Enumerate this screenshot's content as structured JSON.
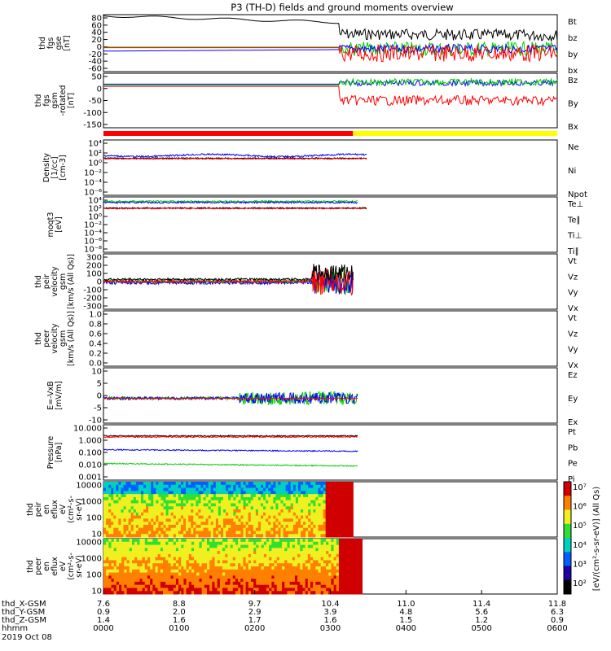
{
  "title": "P3 (TH-D) fields and ground moments overview",
  "colors": {
    "black": "#000000",
    "red": "#ff0000",
    "green": "#00cc00",
    "blue": "#0000ff",
    "yellow": "#ffff00"
  },
  "chart_data": [
    {
      "id": "fgs_gse",
      "type": "line",
      "ylabel": [
        "thd",
        "fgs",
        "gse",
        "[nT]"
      ],
      "yticks": [
        "80",
        "60",
        "40",
        "20",
        "0",
        "-20",
        "-40",
        "-60"
      ],
      "series": [
        {
          "name": "Bt",
          "color": "black"
        },
        {
          "name": "bz",
          "color": "red"
        },
        {
          "name": "by",
          "color": "green"
        },
        {
          "name": "bx",
          "color": "blue"
        }
      ]
    },
    {
      "id": "fgs_gsm",
      "type": "line",
      "ylabel": [
        "thd",
        "fgs",
        "gsm",
        "-rotated",
        "[nT]"
      ],
      "yticks": [
        "50",
        "0",
        "-50",
        "-100",
        "-150"
      ],
      "series": [
        {
          "name": "Bz",
          "color": "red"
        },
        {
          "name": "By",
          "color": "green"
        },
        {
          "name": "Bx",
          "color": "blue"
        }
      ]
    },
    {
      "id": "mode_bar",
      "type": "bar",
      "segments": [
        {
          "from": "0000",
          "to": "0318",
          "color": "red"
        },
        {
          "from": "0318",
          "to": "0600",
          "color": "yellow"
        }
      ]
    },
    {
      "id": "density",
      "type": "line",
      "ylabel": [
        "Density",
        "[1/cc]",
        "[cm-3]"
      ],
      "scale": "log",
      "yticks": [
        "10⁴",
        "10²",
        "10⁰",
        "10⁻²",
        "10⁻⁴",
        "10⁻⁶"
      ],
      "series": [
        {
          "name": "Ne",
          "color": "red"
        },
        {
          "name": "Ni",
          "color": "black"
        },
        {
          "name": "Npot",
          "color": "blue"
        }
      ]
    },
    {
      "id": "temp",
      "type": "line",
      "ylabel": [
        "moqt3",
        "[eV]"
      ],
      "scale": "log",
      "yticks": [
        "10⁴",
        "10²",
        "10⁰",
        "10⁻²",
        "10⁻⁴",
        "10⁻⁶",
        "10⁻⁸"
      ],
      "series": [
        {
          "name": "Te⊥",
          "color": "red"
        },
        {
          "name": "Te∥",
          "color": "black"
        },
        {
          "name": "Ti⊥",
          "color": "blue"
        },
        {
          "name": "Ti∥",
          "color": "green"
        }
      ]
    },
    {
      "id": "peir_vel",
      "type": "line",
      "ylabel": [
        "thd",
        "peir",
        "velocity",
        "gsm",
        "[km/s (All Qs)]"
      ],
      "yticks": [
        "300",
        "200",
        "100",
        "0",
        "-100",
        "-200",
        "-300"
      ],
      "series": [
        {
          "name": "Vt",
          "color": "black"
        },
        {
          "name": "Vz",
          "color": "red"
        },
        {
          "name": "Vy",
          "color": "green"
        },
        {
          "name": "Vx",
          "color": "blue"
        }
      ]
    },
    {
      "id": "peer_vel",
      "type": "line",
      "ylabel": [
        "thd",
        "peer",
        "velocity",
        "gsm",
        "[km/s (All Qs)]"
      ],
      "yticks": [
        "1.0",
        "0.8",
        "0.6",
        "0.4",
        "0.2",
        "0.0"
      ],
      "series": [
        {
          "name": "Vt",
          "color": "black"
        },
        {
          "name": "Vz",
          "color": "red"
        },
        {
          "name": "Vy",
          "color": "green"
        },
        {
          "name": "Vx",
          "color": "blue"
        }
      ]
    },
    {
      "id": "efield",
      "type": "line",
      "ylabel": [
        "E=-VxB",
        "[mV/m]"
      ],
      "yticks": [
        "10",
        "5",
        "0",
        "-5",
        "-10"
      ],
      "series": [
        {
          "name": "Ez",
          "color": "red"
        },
        {
          "name": "Ey",
          "color": "green"
        },
        {
          "name": "Ex",
          "color": "blue"
        }
      ]
    },
    {
      "id": "pressure",
      "type": "line",
      "ylabel": [
        "Pressure",
        "[nPa]"
      ],
      "scale": "log",
      "yticks": [
        "10.000",
        "1.000",
        "0.100",
        "0.010",
        "0.001"
      ],
      "series": [
        {
          "name": "Pt",
          "color": "black"
        },
        {
          "name": "Pb",
          "color": "red"
        },
        {
          "name": "Pe",
          "color": "green"
        },
        {
          "name": "Pi",
          "color": "blue"
        }
      ]
    },
    {
      "id": "peir_eflux",
      "type": "heatmap",
      "ylabel": [
        "thd",
        "peir",
        "en",
        "eflux",
        "eV",
        "(cm²-s-",
        "sr-eV)"
      ],
      "yticks": [
        "10000",
        "1000",
        "100",
        "10"
      ]
    },
    {
      "id": "peer_eflux",
      "type": "heatmap",
      "ylabel": [
        "thd",
        "peer",
        "en",
        "eflux",
        "eV",
        "(cm²-s-",
        "sr-eV)"
      ],
      "yticks": [
        "10000",
        "1000",
        "100",
        "10"
      ]
    }
  ],
  "colorbar": {
    "label": "[eV/(cm²-s-sr-eV)] (All Qs)",
    "ticks": [
      "10⁷",
      "10⁶",
      "10⁵",
      "10⁴",
      "10³",
      "10²"
    ]
  },
  "xaxis": {
    "rows": [
      {
        "name": "thd_X-GSM",
        "values": [
          "7.6",
          "8.8",
          "9.7",
          "10.4",
          "11.0",
          "11.4",
          "11.8"
        ]
      },
      {
        "name": "thd_Y-GSM",
        "values": [
          "0.9",
          "2.0",
          "2.9",
          "3.9",
          "4.8",
          "5.6",
          "6.3"
        ]
      },
      {
        "name": "thd_Z-GSM",
        "values": [
          "1.4",
          "1.6",
          "1.7",
          "1.6",
          "1.5",
          "1.2",
          "0.9"
        ]
      },
      {
        "name": "hhmm",
        "values": [
          "0000",
          "0100",
          "0200",
          "0300",
          "0400",
          "0500",
          "0600"
        ]
      }
    ],
    "date": "2019 Oct 08"
  }
}
